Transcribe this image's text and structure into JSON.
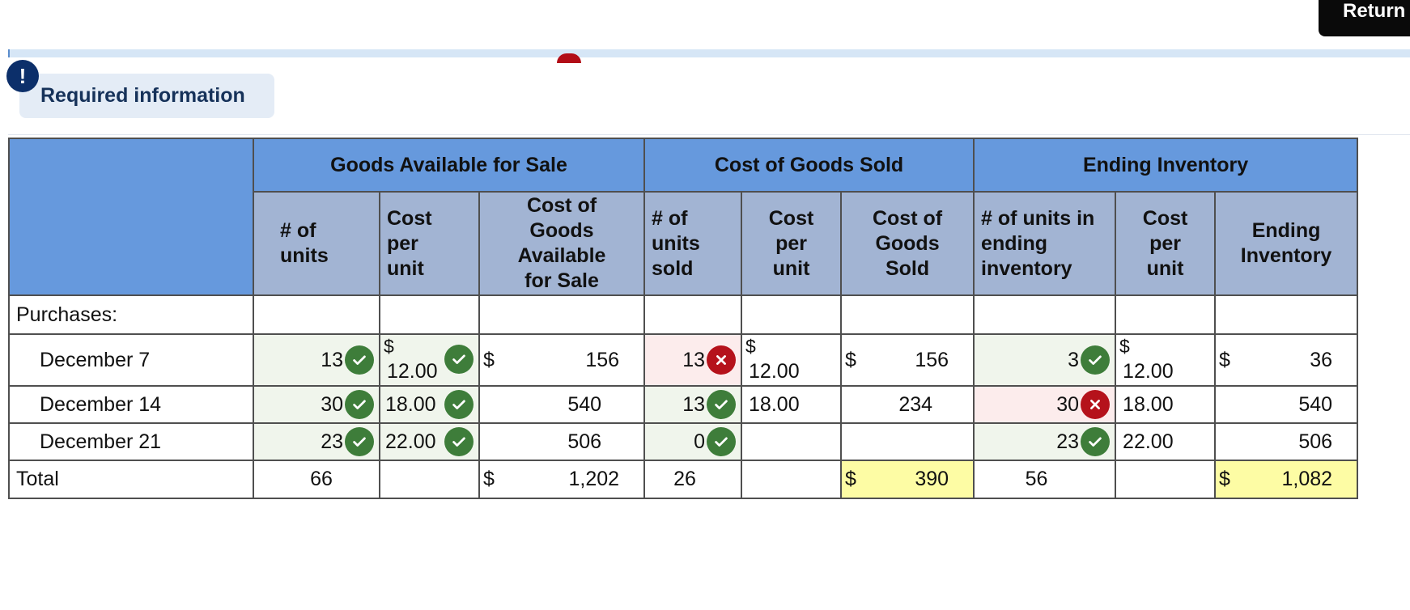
{
  "header": {
    "return_label": "Return"
  },
  "info": {
    "alert_glyph": "!",
    "label": "Required information"
  },
  "table": {
    "groups": [
      "Goods Available for Sale",
      "Cost of Goods Sold",
      "Ending Inventory"
    ],
    "columns": [
      "# of units",
      "Cost per unit",
      "Cost of Goods Available for Sale",
      "# of units sold",
      "Cost per unit",
      "Cost of Goods Sold",
      "# of units in ending inventory",
      "Cost per unit",
      "Ending Inventory"
    ],
    "purchases_label": "Purchases:",
    "rows": [
      {
        "label": "December 7",
        "units": "13",
        "units_status": "correct",
        "cost_dollar": "$",
        "cost": "12.00",
        "cost_status": "correct",
        "avail_dollar": "$",
        "avail": "156",
        "sold": "13",
        "sold_status": "incorrect",
        "cogs_cost_dollar": "$",
        "cogs_cost": "12.00",
        "cogs_dollar": "$",
        "cogs": "156",
        "end_units": "3",
        "end_units_status": "correct",
        "end_cost_dollar": "$",
        "end_cost": "12.00",
        "end_dollar": "$",
        "end_inv": "36"
      },
      {
        "label": "December 14",
        "units": "30",
        "units_status": "correct",
        "cost": "18.00",
        "cost_status": "correct",
        "avail": "540",
        "sold": "13",
        "sold_status": "correct",
        "cogs_cost": "18.00",
        "cogs": "234",
        "end_units": "30",
        "end_units_status": "incorrect",
        "end_cost": "18.00",
        "end_inv": "540"
      },
      {
        "label": "December 21",
        "units": "23",
        "units_status": "correct",
        "cost": "22.00",
        "cost_status": "correct",
        "avail": "506",
        "sold": "0",
        "sold_status": "correct",
        "end_units": "23",
        "end_units_status": "correct",
        "end_cost": "22.00",
        "end_inv": "506"
      }
    ],
    "total": {
      "label": "Total",
      "units": "66",
      "avail_dollar": "$",
      "avail": "1,202",
      "sold": "26",
      "cogs_dollar": "$",
      "cogs": "390",
      "end_units": "56",
      "end_dollar": "$",
      "end_inv": "1,082"
    }
  },
  "colors": {
    "header_blue": "#6699dd",
    "subheader_slate": "#a2b4d3",
    "correct_green": "#3e7d3a",
    "incorrect_red": "#b5121b",
    "highlight_yellow": "#fdfca4"
  },
  "icons": {
    "correct": "check-circle-icon",
    "incorrect": "x-circle-icon"
  }
}
